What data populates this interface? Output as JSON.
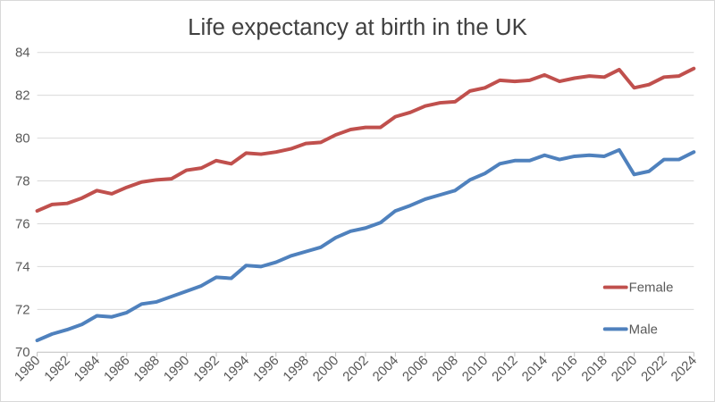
{
  "chart_data": {
    "type": "line",
    "title": "Life expectancy at birth in the UK",
    "xlabel": "",
    "ylabel": "",
    "x": [
      1980,
      1981,
      1982,
      1983,
      1984,
      1985,
      1986,
      1987,
      1988,
      1989,
      1990,
      1991,
      1992,
      1993,
      1994,
      1995,
      1996,
      1997,
      1998,
      1999,
      2000,
      2001,
      2002,
      2003,
      2004,
      2005,
      2006,
      2007,
      2008,
      2009,
      2010,
      2011,
      2012,
      2013,
      2014,
      2015,
      2016,
      2017,
      2018,
      2019,
      2020,
      2021,
      2022,
      2023,
      2024
    ],
    "xlim": [
      1980,
      2024
    ],
    "ylim": [
      70,
      84
    ],
    "yticks": [
      70,
      72,
      74,
      76,
      78,
      80,
      82,
      84
    ],
    "xticks": [
      1980,
      1982,
      1984,
      1986,
      1988,
      1990,
      1992,
      1994,
      1996,
      1998,
      2000,
      2002,
      2004,
      2006,
      2008,
      2010,
      2012,
      2014,
      2016,
      2018,
      2020,
      2022,
      2024
    ],
    "grid": true,
    "legend_position": "right",
    "series": [
      {
        "name": "Female",
        "color": "#c0504d",
        "values": [
          76.6,
          76.9,
          76.95,
          77.2,
          77.55,
          77.4,
          77.7,
          77.95,
          78.05,
          78.1,
          78.5,
          78.6,
          78.95,
          78.8,
          79.3,
          79.25,
          79.35,
          79.5,
          79.75,
          79.8,
          80.15,
          80.4,
          80.5,
          80.5,
          81.0,
          81.2,
          81.5,
          81.65,
          81.7,
          82.2,
          82.35,
          82.7,
          82.65,
          82.7,
          82.95,
          82.65,
          82.8,
          82.9,
          82.85,
          83.2,
          82.35,
          82.5,
          82.85,
          82.9,
          83.25
        ]
      },
      {
        "name": "Male",
        "color": "#4f81bd",
        "values": [
          70.55,
          70.85,
          71.05,
          71.3,
          71.7,
          71.65,
          71.85,
          72.25,
          72.35,
          72.6,
          72.85,
          73.1,
          73.5,
          73.45,
          74.05,
          74.0,
          74.2,
          74.5,
          74.7,
          74.9,
          75.35,
          75.65,
          75.8,
          76.05,
          76.6,
          76.85,
          77.15,
          77.35,
          77.55,
          78.05,
          78.35,
          78.8,
          78.95,
          78.95,
          79.2,
          79.0,
          79.15,
          79.2,
          79.15,
          79.45,
          78.3,
          78.45,
          79.0,
          79.0,
          79.35
        ]
      }
    ]
  }
}
